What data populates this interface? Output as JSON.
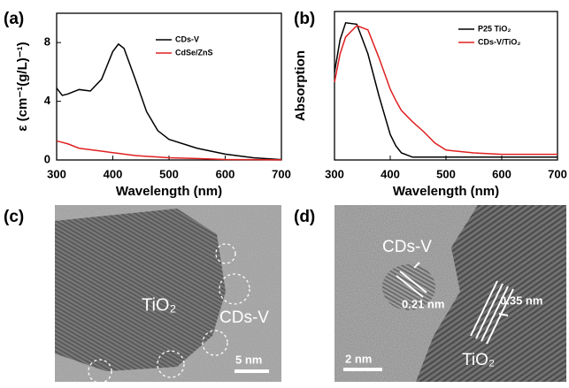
{
  "chart_data": [
    {
      "type": "line",
      "label": "(a)",
      "x_label": "Wavelength (nm)",
      "y_label": "ε (cm⁻¹(g/L)⁻¹)",
      "x": [
        300,
        310,
        320,
        340,
        360,
        380,
        400,
        410,
        420,
        440,
        460,
        480,
        500,
        550,
        600,
        650,
        700
      ],
      "xlim": [
        300,
        700
      ],
      "xticks": [
        300,
        400,
        500,
        600,
        700
      ],
      "ylim": [
        0,
        10
      ],
      "yticks": [
        0,
        4,
        8
      ],
      "series": [
        {
          "name": "CDs-V",
          "color": "#000000",
          "values": [
            4.9,
            4.4,
            4.5,
            4.8,
            4.7,
            5.5,
            7.4,
            7.9,
            7.6,
            5.5,
            3.3,
            2.0,
            1.4,
            0.8,
            0.4,
            0.15,
            0.02
          ]
        },
        {
          "name": "CdSe/ZnS",
          "color": "#e02020",
          "values": [
            1.3,
            1.2,
            1.1,
            0.8,
            0.7,
            0.6,
            0.5,
            0.45,
            0.4,
            0.3,
            0.25,
            0.2,
            0.15,
            0.1,
            0.03,
            0.02,
            0.01
          ]
        }
      ]
    },
    {
      "type": "line",
      "label": "(b)",
      "x_label": "Wavelength (nm)",
      "y_label": "Absorption",
      "x": [
        300,
        310,
        320,
        340,
        360,
        380,
        400,
        410,
        420,
        440,
        460,
        480,
        500,
        550,
        600,
        650,
        700
      ],
      "xlim": [
        300,
        700
      ],
      "xticks": [
        300,
        400,
        500,
        600,
        700
      ],
      "ylim": [
        0,
        1.05
      ],
      "series": [
        {
          "name": "P25 TiO₂",
          "color": "#000000",
          "values": [
            0.62,
            0.85,
            0.97,
            0.96,
            0.75,
            0.45,
            0.18,
            0.1,
            0.05,
            0.02,
            0.02,
            0.02,
            0.02,
            0.02,
            0.02,
            0.02,
            0.02
          ]
        },
        {
          "name": "CDs-V/TiO₂",
          "color": "#e02020",
          "values": [
            0.55,
            0.75,
            0.87,
            0.95,
            0.92,
            0.72,
            0.5,
            0.42,
            0.35,
            0.27,
            0.2,
            0.12,
            0.07,
            0.05,
            0.04,
            0.04,
            0.04
          ]
        }
      ]
    }
  ],
  "panels": [
    {
      "label": "(c)",
      "annotations": [
        "TiO₂",
        "CDs-V",
        "5 nm"
      ]
    },
    {
      "label": "(d)",
      "annotations": [
        "CDs-V",
        "0.21 nm",
        "0.35 nm",
        "2 nm",
        "TiO₂"
      ]
    }
  ]
}
